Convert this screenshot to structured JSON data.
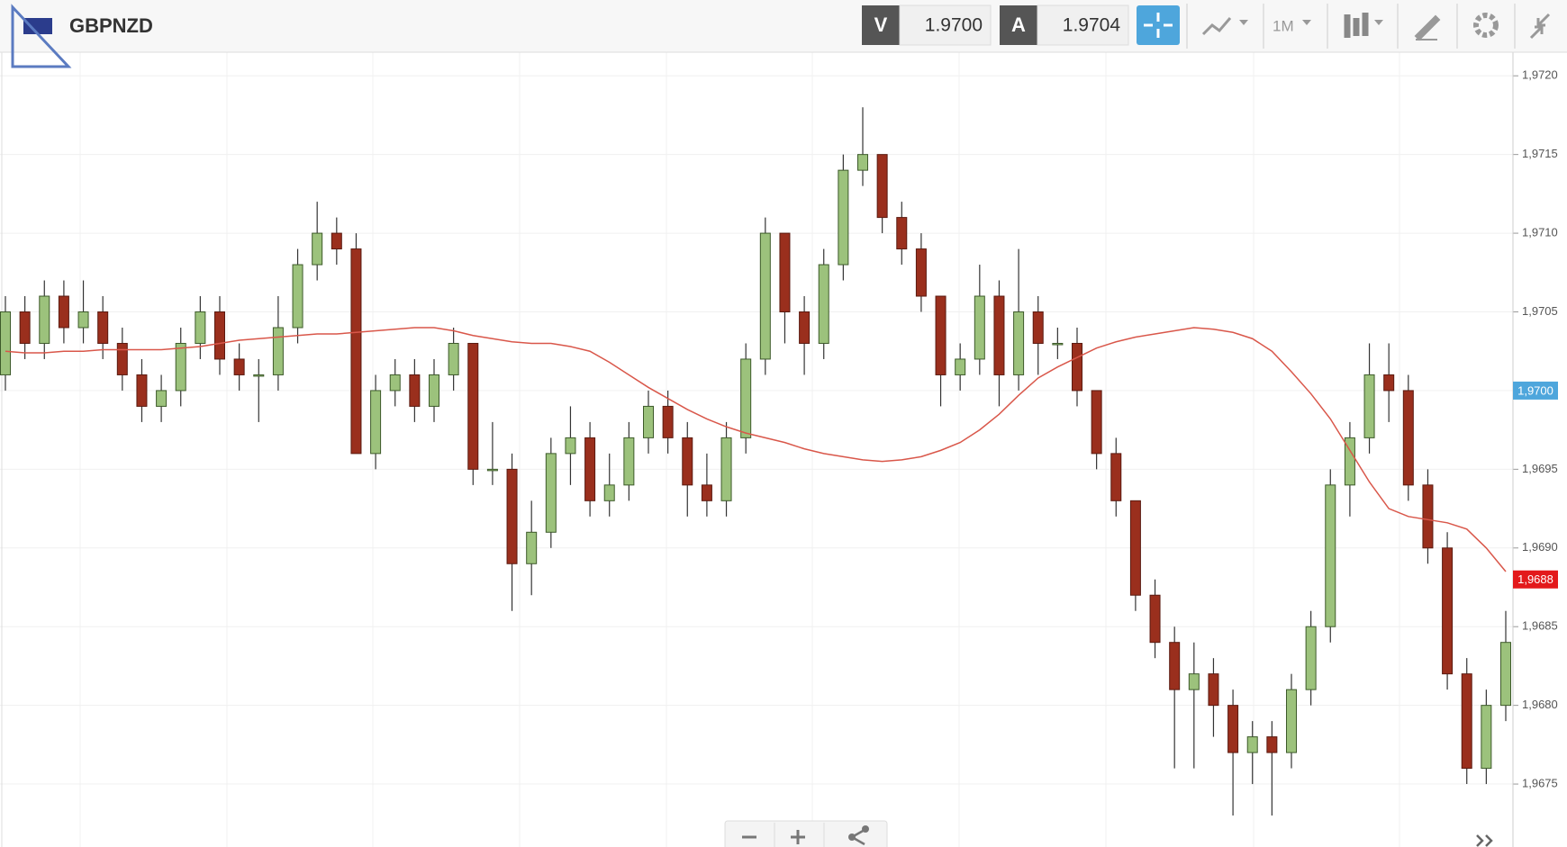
{
  "toolbar": {
    "symbol": "GBPNZD",
    "sell_label": "V",
    "sell_price": "1.9700",
    "buy_label": "A",
    "buy_price": "1.9704",
    "timeframe": "1M"
  },
  "chart_data": {
    "type": "candlestick",
    "ylim": [
      1.9671,
      1.97215
    ],
    "yticks": [
      {
        "value": 1.9675,
        "label": "1,9675"
      },
      {
        "value": 1.968,
        "label": "1,9680"
      },
      {
        "value": 1.9685,
        "label": "1,9685"
      },
      {
        "value": 1.969,
        "label": "1,9690"
      },
      {
        "value": 1.9695,
        "label": "1,9695"
      },
      {
        "value": 1.97,
        "label": "1,9700"
      },
      {
        "value": 1.9705,
        "label": "1,9705"
      },
      {
        "value": 1.971,
        "label": "1,9710"
      },
      {
        "value": 1.9715,
        "label": "1,9715"
      },
      {
        "value": 1.972,
        "label": "1,9720"
      }
    ],
    "open": [
      1.9701,
      1.9705,
      1.9703,
      1.9706,
      1.9704,
      1.9705,
      1.9703,
      1.9701,
      1.9699,
      1.97,
      1.9703,
      1.9705,
      1.9702,
      1.9701,
      1.9701,
      1.9704,
      1.9708,
      1.971,
      1.9709,
      1.9696,
      1.97,
      1.9701,
      1.9699,
      1.9701,
      1.9703,
      1.9695,
      1.9695,
      1.9689,
      1.9691,
      1.9696,
      1.9697,
      1.9693,
      1.9694,
      1.9697,
      1.9699,
      1.9697,
      1.9694,
      1.9693,
      1.9697,
      1.9702,
      1.971,
      1.9705,
      1.9703,
      1.9708,
      1.9714,
      1.9715,
      1.9711,
      1.9709,
      1.9706,
      1.9701,
      1.9702,
      1.9706,
      1.9701,
      1.9705,
      1.9703,
      1.9703,
      1.97,
      1.9696,
      1.9693,
      1.9687,
      1.9684,
      1.9681,
      1.9682,
      1.968,
      1.9677,
      1.9678,
      1.9677,
      1.9681,
      1.9685,
      1.9694,
      1.9697,
      1.9701,
      1.97,
      1.9694,
      1.969,
      1.9682,
      1.9676,
      1.968
    ],
    "high": [
      1.9706,
      1.9706,
      1.9707,
      1.9707,
      1.9707,
      1.9706,
      1.9704,
      1.9702,
      1.9701,
      1.9704,
      1.9706,
      1.9706,
      1.9703,
      1.9702,
      1.9706,
      1.9709,
      1.9712,
      1.9711,
      1.971,
      1.9701,
      1.9702,
      1.9702,
      1.9702,
      1.9704,
      1.9703,
      1.9698,
      1.9696,
      1.9693,
      1.9697,
      1.9699,
      1.9698,
      1.9696,
      1.9698,
      1.97,
      1.97,
      1.9698,
      1.9696,
      1.9698,
      1.9703,
      1.9711,
      1.971,
      1.9706,
      1.9709,
      1.9715,
      1.9718,
      1.9715,
      1.9712,
      1.971,
      1.9706,
      1.9703,
      1.9708,
      1.9707,
      1.9709,
      1.9706,
      1.9704,
      1.9704,
      1.97,
      1.9697,
      1.9693,
      1.9688,
      1.9685,
      1.9684,
      1.9683,
      1.9681,
      1.9679,
      1.9679,
      1.9682,
      1.9686,
      1.9695,
      1.9698,
      1.9703,
      1.9703,
      1.9701,
      1.9695,
      1.9691,
      1.9683,
      1.9681,
      1.9686
    ],
    "low": [
      1.97,
      1.9702,
      1.9702,
      1.9703,
      1.9703,
      1.9702,
      1.97,
      1.9698,
      1.9698,
      1.9699,
      1.9702,
      1.9701,
      1.97,
      1.9698,
      1.97,
      1.9703,
      1.9707,
      1.9708,
      1.9696,
      1.9695,
      1.9699,
      1.9698,
      1.9698,
      1.97,
      1.9694,
      1.9694,
      1.9686,
      1.9687,
      1.969,
      1.9694,
      1.9692,
      1.9692,
      1.9693,
      1.9696,
      1.9696,
      1.9692,
      1.9692,
      1.9692,
      1.9696,
      1.9701,
      1.9703,
      1.9701,
      1.9702,
      1.9707,
      1.9713,
      1.971,
      1.9708,
      1.9705,
      1.9699,
      1.97,
      1.9701,
      1.9699,
      1.97,
      1.9701,
      1.9702,
      1.9699,
      1.9695,
      1.9692,
      1.9686,
      1.9683,
      1.9676,
      1.9676,
      1.9678,
      1.9673,
      1.9675,
      1.9673,
      1.9676,
      1.968,
      1.9684,
      1.9692,
      1.9696,
      1.9698,
      1.9693,
      1.9689,
      1.9681,
      1.9675,
      1.9675,
      1.9679
    ],
    "close": [
      1.9705,
      1.9703,
      1.9706,
      1.9704,
      1.9705,
      1.9703,
      1.9701,
      1.9699,
      1.97,
      1.9703,
      1.9705,
      1.9702,
      1.9701,
      1.9701,
      1.9704,
      1.9708,
      1.971,
      1.9709,
      1.9696,
      1.97,
      1.9701,
      1.9699,
      1.9701,
      1.9703,
      1.9695,
      1.9695,
      1.9689,
      1.9691,
      1.9696,
      1.9697,
      1.9693,
      1.9694,
      1.9697,
      1.9699,
      1.9697,
      1.9694,
      1.9693,
      1.9697,
      1.9702,
      1.971,
      1.9705,
      1.9703,
      1.9708,
      1.9714,
      1.9715,
      1.9711,
      1.9709,
      1.9706,
      1.9701,
      1.9702,
      1.9706,
      1.9701,
      1.9705,
      1.9703,
      1.9703,
      1.97,
      1.9696,
      1.9693,
      1.9687,
      1.9684,
      1.9681,
      1.9682,
      1.968,
      1.9677,
      1.9678,
      1.9677,
      1.9681,
      1.9685,
      1.9694,
      1.9697,
      1.9701,
      1.97,
      1.9694,
      1.969,
      1.9682,
      1.9676,
      1.968,
      1.9684
    ],
    "up_color": "#9cc27c",
    "down_color": "#9a2f1d",
    "moving_average": {
      "color": "#d9574a",
      "values": [
        1.97025,
        1.97024,
        1.97024,
        1.97025,
        1.97025,
        1.97026,
        1.97026,
        1.97026,
        1.97026,
        1.97027,
        1.97028,
        1.9703,
        1.97032,
        1.97033,
        1.97034,
        1.97035,
        1.97036,
        1.97036,
        1.97037,
        1.97038,
        1.97039,
        1.9704,
        1.9704,
        1.97038,
        1.97035,
        1.97033,
        1.97031,
        1.9703,
        1.9703,
        1.97028,
        1.97025,
        1.97018,
        1.9701,
        1.97002,
        1.96995,
        1.96988,
        1.96982,
        1.96977,
        1.96973,
        1.9697,
        1.96967,
        1.96963,
        1.9696,
        1.96958,
        1.96956,
        1.96955,
        1.96956,
        1.96958,
        1.96962,
        1.96967,
        1.96975,
        1.96985,
        1.96997,
        1.97008,
        1.97015,
        1.97021,
        1.97027,
        1.97031,
        1.97034,
        1.97036,
        1.97038,
        1.9704,
        1.97039,
        1.97037,
        1.97033,
        1.97025,
        1.97012,
        1.96998,
        1.96982,
        1.96962,
        1.96942,
        1.96925,
        1.9692,
        1.96918,
        1.96916,
        1.96912,
        1.969,
        1.96885
      ]
    },
    "price_tags": [
      {
        "value": 1.97,
        "label": "1,9700",
        "color": "#4ea6dc"
      },
      {
        "value": 1.9688,
        "label": "1,9688",
        "color": "#e3191b"
      }
    ]
  }
}
